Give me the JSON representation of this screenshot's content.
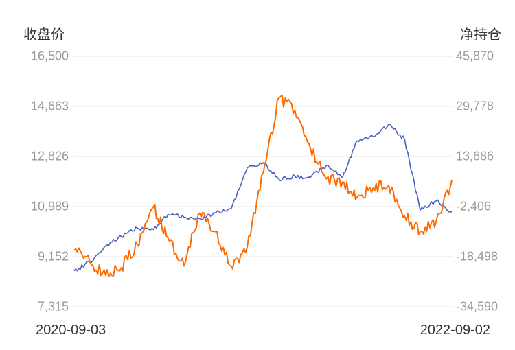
{
  "chart_data": {
    "type": "line",
    "ylabel_left": "收盘价",
    "ylabel_right": "净持仓",
    "y_left_ticks": [
      "16,500",
      "14,663",
      "12,826",
      "10,989",
      "9,152",
      "7,315"
    ],
    "y_right_ticks": [
      "45,870",
      "29,778",
      "13,686",
      "-2,406",
      "-18,498",
      "-34,590"
    ],
    "y_left_range": [
      7315,
      16500
    ],
    "y_right_range": [
      -34590,
      45870
    ],
    "x_labels": [
      "2020-09-03",
      "2022-09-02"
    ],
    "grid": true,
    "series": [
      {
        "axis": "left",
        "color": "#4a5fc1",
        "x": [
          "2020-09-03",
          "2020-10-03",
          "2020-11-03",
          "2020-12-03",
          "2021-01-03",
          "2021-02-03",
          "2021-03-03",
          "2021-04-03",
          "2021-05-03",
          "2021-06-03",
          "2021-07-03",
          "2021-08-03",
          "2021-09-03",
          "2021-10-03",
          "2021-11-03",
          "2021-12-03",
          "2022-01-03",
          "2022-02-03",
          "2022-03-03",
          "2022-04-03",
          "2022-05-03",
          "2022-06-03",
          "2022-07-03",
          "2022-08-03",
          "2022-09-02"
        ],
        "values": [
          8630,
          8950,
          9550,
          9900,
          10200,
          10150,
          10700,
          10600,
          10550,
          10750,
          10900,
          12400,
          12600,
          12000,
          12100,
          12050,
          12500,
          12050,
          13400,
          13550,
          14000,
          13450,
          10850,
          11200,
          10780
        ]
      },
      {
        "axis": "right",
        "color": "#ff6a00",
        "x": [
          "2020-09-03",
          "2020-10-03",
          "2020-11-03",
          "2020-12-03",
          "2021-01-03",
          "2021-02-03",
          "2021-03-03",
          "2021-04-03",
          "2021-05-03",
          "2021-06-03",
          "2021-07-03",
          "2021-08-03",
          "2021-09-03",
          "2021-10-03",
          "2021-11-03",
          "2021-12-03",
          "2022-01-03",
          "2022-02-03",
          "2022-03-03",
          "2022-04-03",
          "2022-05-03",
          "2022-06-03",
          "2022-07-03",
          "2022-08-03",
          "2022-09-02"
        ],
        "values": [
          -16500,
          -20000,
          -24500,
          -22000,
          -14500,
          -2500,
          -12500,
          -21500,
          -4500,
          -10500,
          -21500,
          -15500,
          8500,
          32500,
          28500,
          16500,
          6500,
          5500,
          500,
          3500,
          4500,
          -5500,
          -10500,
          -7000,
          6000
        ]
      }
    ]
  }
}
